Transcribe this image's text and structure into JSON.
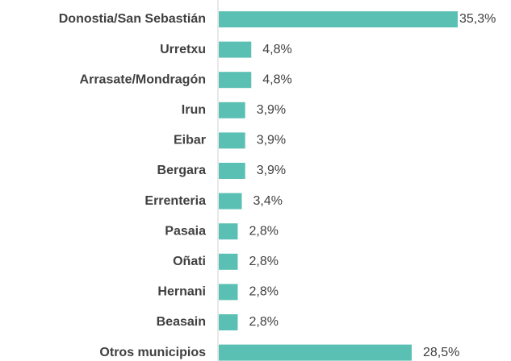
{
  "chart_data": {
    "type": "bar",
    "orientation": "horizontal",
    "categories": [
      "Donostia/San Sebastián",
      "Urretxu",
      "Arrasate/Mondragón",
      "Irun",
      "Eibar",
      "Bergara",
      "Errenteria",
      "Pasaia",
      "Oñati",
      "Hernani",
      "Beasain",
      "Otros municipios"
    ],
    "values": [
      35.3,
      4.8,
      4.8,
      3.9,
      3.9,
      3.9,
      3.4,
      2.8,
      2.8,
      2.8,
      2.8,
      28.5
    ],
    "value_labels": [
      "35,3%",
      "4,8%",
      "4,8%",
      "3,9%",
      "3,9%",
      "3,9%",
      "3,4%",
      "2,8%",
      "2,8%",
      "2,8%",
      "2,8%",
      "28,5%"
    ],
    "color": "#5bc0b4"
  }
}
